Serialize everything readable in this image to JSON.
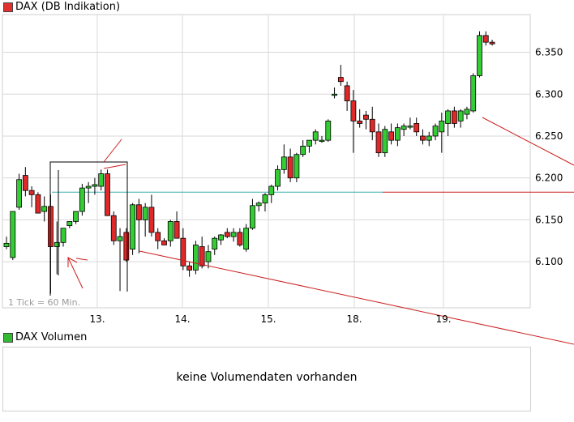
{
  "main_legend": {
    "label": "DAX (DB Indikation)",
    "color": "#e03030"
  },
  "volume_legend": {
    "label": "DAX Volumen",
    "color": "#33bb33"
  },
  "volume_panel": {
    "message": "keine Volumendaten vorhanden"
  },
  "tick_note": "1 Tick = 60 Min.",
  "colors": {
    "up": "#33cc33",
    "down": "#e02828",
    "grid": "#d8d8d8",
    "frame": "#cfcfcf",
    "horizontal_level": "#3ab0b0",
    "trendline": "#cc2020",
    "annotation": "#cc2020"
  },
  "chart_data": {
    "type": "candlestick",
    "title": "DAX (DB Indikation)",
    "x_tick_labels": [
      "13.",
      "14.",
      "15.",
      "18.",
      "19."
    ],
    "y_tick_labels": [
      "6.100",
      "6.150",
      "6.200",
      "6.250",
      "6.300",
      "6.350"
    ],
    "y_ticks": [
      6100,
      6150,
      6200,
      6250,
      6300,
      6350
    ],
    "ylim": [
      6045,
      6395
    ],
    "grid": true,
    "horizontal_level": 6183,
    "candles": [
      [
        6118,
        6130,
        6115,
        6122
      ],
      [
        6105,
        6160,
        6102,
        6160
      ],
      [
        6165,
        6205,
        6162,
        6198
      ],
      [
        6203,
        6213,
        6178,
        6185
      ],
      [
        6185,
        6190,
        6165,
        6180
      ],
      [
        6180,
        6183,
        6158,
        6158
      ],
      [
        6160,
        6178,
        6148,
        6166
      ],
      [
        6166,
        6180,
        6062,
        6118
      ],
      [
        6118,
        6148,
        6085,
        6123
      ],
      [
        6123,
        6140,
        6118,
        6140
      ],
      [
        6143,
        6148,
        6140,
        6148
      ],
      [
        6148,
        6158,
        6145,
        6160
      ],
      [
        6160,
        6193,
        6155,
        6188
      ],
      [
        6188,
        6195,
        6170,
        6190
      ],
      [
        6190,
        6200,
        6180,
        6192
      ],
      [
        6190,
        6210,
        6185,
        6205
      ],
      [
        6205,
        6210,
        6155,
        6155
      ],
      [
        6155,
        6160,
        6120,
        6125
      ],
      [
        6125,
        6140,
        6065,
        6130
      ],
      [
        6135,
        6140,
        6100,
        6102
      ],
      [
        6115,
        6170,
        6108,
        6168
      ],
      [
        6168,
        6175,
        6110,
        6150
      ],
      [
        6150,
        6170,
        6130,
        6165
      ],
      [
        6165,
        6180,
        6130,
        6135
      ],
      [
        6135,
        6140,
        6115,
        6125
      ],
      [
        6125,
        6128,
        6120,
        6120
      ],
      [
        6125,
        6150,
        6118,
        6148
      ],
      [
        6148,
        6160,
        6128,
        6128
      ],
      [
        6128,
        6140,
        6090,
        6095
      ],
      [
        6095,
        6100,
        6082,
        6090
      ],
      [
        6090,
        6125,
        6085,
        6120
      ],
      [
        6118,
        6130,
        6092,
        6095
      ],
      [
        6100,
        6120,
        6092,
        6112
      ],
      [
        6115,
        6130,
        6108,
        6128
      ],
      [
        6126,
        6133,
        6120,
        6132
      ],
      [
        6135,
        6140,
        6128,
        6130
      ],
      [
        6130,
        6140,
        6124,
        6135
      ],
      [
        6135,
        6140,
        6118,
        6120
      ],
      [
        6115,
        6145,
        6112,
        6140
      ],
      [
        6140,
        6175,
        6138,
        6167
      ],
      [
        6167,
        6172,
        6160,
        6170
      ],
      [
        6170,
        6182,
        6160,
        6180
      ],
      [
        6180,
        6192,
        6170,
        6190
      ],
      [
        6190,
        6215,
        6185,
        6210
      ],
      [
        6210,
        6240,
        6205,
        6225
      ],
      [
        6225,
        6235,
        6195,
        6200
      ],
      [
        6200,
        6230,
        6195,
        6228
      ],
      [
        6228,
        6245,
        6225,
        6238
      ],
      [
        6238,
        6245,
        6230,
        6245
      ],
      [
        6245,
        6258,
        6240,
        6255
      ],
      [
        6245,
        6250,
        6242,
        6245
      ],
      [
        6245,
        6270,
        6243,
        6268
      ],
      [
        6300,
        6308,
        6295,
        6300
      ],
      [
        6320,
        6335,
        6310,
        6315
      ],
      [
        6310,
        6315,
        6280,
        6292
      ],
      [
        6292,
        6305,
        6230,
        6268
      ],
      [
        6268,
        6282,
        6260,
        6265
      ],
      [
        6275,
        6280,
        6258,
        6270
      ],
      [
        6270,
        6285,
        6245,
        6255
      ],
      [
        6255,
        6265,
        6225,
        6230
      ],
      [
        6230,
        6262,
        6225,
        6258
      ],
      [
        6255,
        6265,
        6240,
        6245
      ],
      [
        6245,
        6265,
        6238,
        6260
      ],
      [
        6258,
        6265,
        6250,
        6262
      ],
      [
        6262,
        6272,
        6258,
        6262
      ],
      [
        6265,
        6272,
        6250,
        6255
      ],
      [
        6250,
        6258,
        6240,
        6245
      ],
      [
        6245,
        6255,
        6238,
        6250
      ],
      [
        6250,
        6265,
        6245,
        6262
      ],
      [
        6255,
        6278,
        6230,
        6268
      ],
      [
        6265,
        6282,
        6250,
        6280
      ],
      [
        6280,
        6285,
        6260,
        6265
      ],
      [
        6268,
        6282,
        6260,
        6280
      ],
      [
        6276,
        6285,
        6270,
        6282
      ],
      [
        6280,
        6325,
        6278,
        6322
      ],
      [
        6322,
        6375,
        6320,
        6370
      ],
      [
        6370,
        6375,
        6358,
        6362
      ],
      [
        6362,
        6365,
        6358,
        6360
      ]
    ]
  }
}
